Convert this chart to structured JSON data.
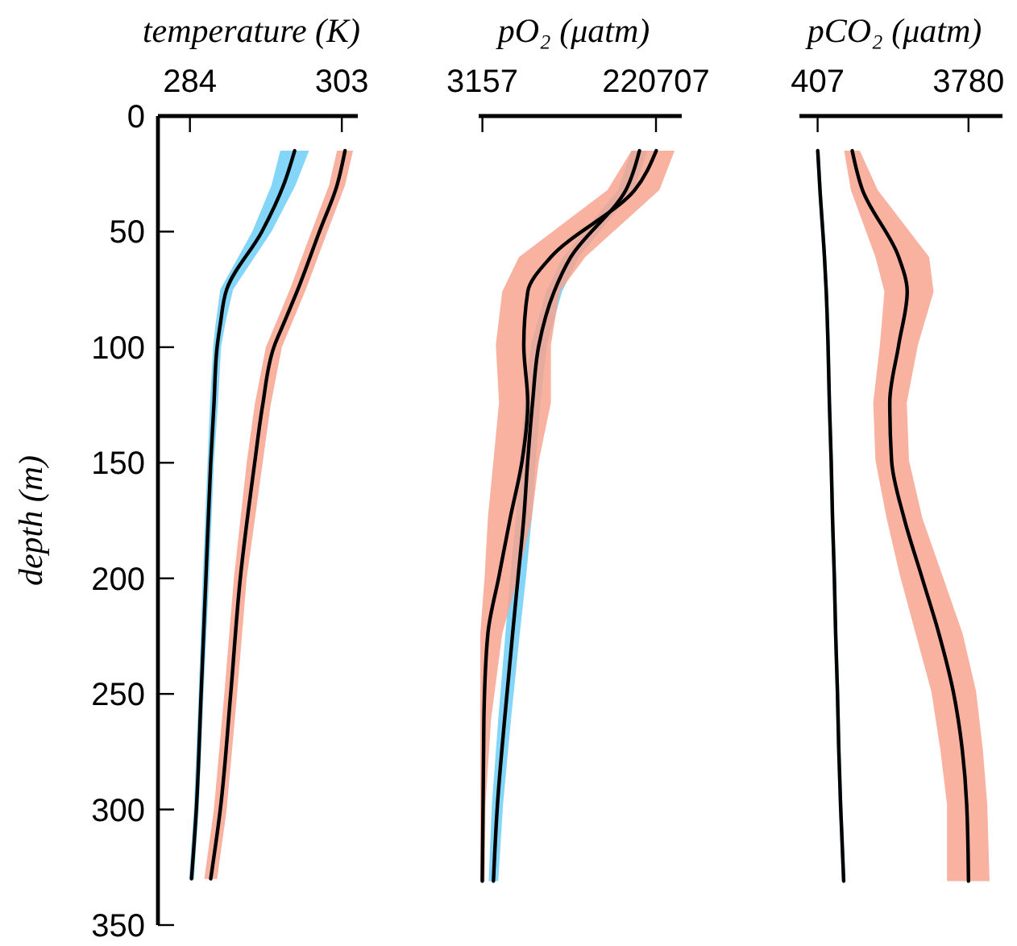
{
  "chart_data": [
    {
      "type": "line",
      "orientation": "horizontal",
      "xlabel": "temperature (K)",
      "ylabel": "depth (m)",
      "xlim": [
        280,
        305
      ],
      "xticks": [
        284,
        303
      ],
      "ylim": [
        350,
        0
      ],
      "yticks": [
        0,
        50,
        100,
        150,
        200,
        250,
        300,
        350
      ],
      "x": [
        15,
        30,
        50,
        75,
        90,
        100,
        125,
        150,
        200,
        250,
        300,
        330
      ],
      "series": [
        {
          "color": "#000000",
          "values": [
            297.1,
            295.7,
            293,
            288.6,
            287.8,
            287.4,
            287,
            286.6,
            286,
            285.4,
            284.8,
            284.2
          ],
          "lower": [
            295.3,
            294.2,
            291.8,
            287.8,
            287.2,
            286.9,
            286.5,
            286.2,
            285.6,
            285.1,
            284.5,
            283.9
          ],
          "upper": [
            298.9,
            297.2,
            294.2,
            289.4,
            288.4,
            287.9,
            287.5,
            287,
            286.4,
            285.7,
            285.1,
            284.5
          ]
        },
        {
          "color": "#000000",
          "values": [
            303.4,
            302.4,
            300.2,
            297.5,
            295.7,
            294.5,
            293.1,
            292.1,
            290.3,
            289.1,
            287.8,
            286.6
          ],
          "lower": [
            302.4,
            301.4,
            299.2,
            296.5,
            294.7,
            293.5,
            292.1,
            291.1,
            289.5,
            288.3,
            287,
            285.8
          ],
          "upper": [
            304.4,
            303.4,
            301.2,
            298.5,
            296.7,
            295.5,
            294.1,
            293.1,
            291.1,
            289.9,
            288.6,
            287.4
          ]
        }
      ]
    },
    {
      "type": "line",
      "orientation": "horizontal",
      "xlabel": "pO₂ (μatm)",
      "xlim": [
        -1500,
        253000
      ],
      "xticks": [
        3157,
        220707
      ],
      "ylim": [
        350,
        0
      ],
      "tick_labels": "x",
      "x": [
        15,
        32,
        61,
        76,
        99,
        124,
        149,
        174,
        199,
        224,
        261,
        298,
        331
      ],
      "series": [
        {
          "color": "#000000",
          "values": [
            200000,
            183000,
            114000,
            93000,
            74000,
            66000,
            60000,
            55000,
            48000,
            41000,
            31000,
            22000,
            17000
          ],
          "lower": [
            190000,
            173000,
            104000,
            83000,
            64000,
            56000,
            50000,
            45000,
            38000,
            32000,
            23000,
            15000,
            11000
          ],
          "upper": [
            210000,
            193000,
            124000,
            103000,
            84000,
            76000,
            70000,
            65000,
            58000,
            50000,
            39000,
            29000,
            23000
          ]
        },
        {
          "color": "#000000",
          "values": [
            221000,
            194000,
            89000,
            60000,
            55000,
            60000,
            53000,
            38000,
            24000,
            10000,
            5000,
            4000,
            3000
          ],
          "lower": [
            190000,
            160000,
            49000,
            28000,
            20000,
            24000,
            17000,
            10000,
            6000,
            500,
            500,
            500,
            500
          ],
          "upper": [
            244000,
            225000,
            132000,
            100000,
            89000,
            89000,
            74000,
            65000,
            48000,
            28000,
            14000,
            7000,
            6000
          ]
        }
      ]
    },
    {
      "type": "line",
      "orientation": "horizontal",
      "xlabel": "pCO₂ (μatm)",
      "xlim": [
        0,
        4540
      ],
      "xticks": [
        407,
        3780
      ],
      "ylim": [
        350,
        0
      ],
      "tick_labels": "x",
      "x": [
        15,
        32,
        61,
        76,
        99,
        124,
        149,
        174,
        199,
        224,
        249,
        274,
        298,
        331
      ],
      "series": [
        {
          "color": "#000000",
          "values": [
            410,
            460,
            560,
            600,
            640,
            670,
            710,
            740,
            780,
            810,
            850,
            880,
            920,
            990
          ],
          "lower": [
            370,
            420,
            520,
            560,
            600,
            630,
            670,
            700,
            740,
            770,
            810,
            840,
            880,
            950
          ],
          "upper": [
            450,
            500,
            600,
            640,
            680,
            710,
            750,
            780,
            820,
            850,
            890,
            920,
            960,
            1030
          ]
        },
        {
          "color": "#000000",
          "values": [
            1180,
            1410,
            2220,
            2410,
            2220,
            2020,
            2060,
            2340,
            2730,
            3120,
            3440,
            3640,
            3740,
            3780
          ],
          "lower": [
            1000,
            1150,
            1700,
            1900,
            1800,
            1650,
            1700,
            1950,
            2250,
            2600,
            2950,
            3150,
            3300,
            3300
          ],
          "upper": [
            1350,
            1750,
            2900,
            3000,
            2650,
            2400,
            2450,
            2750,
            3200,
            3650,
            3950,
            4100,
            4200,
            4250
          ]
        }
      ]
    }
  ]
}
